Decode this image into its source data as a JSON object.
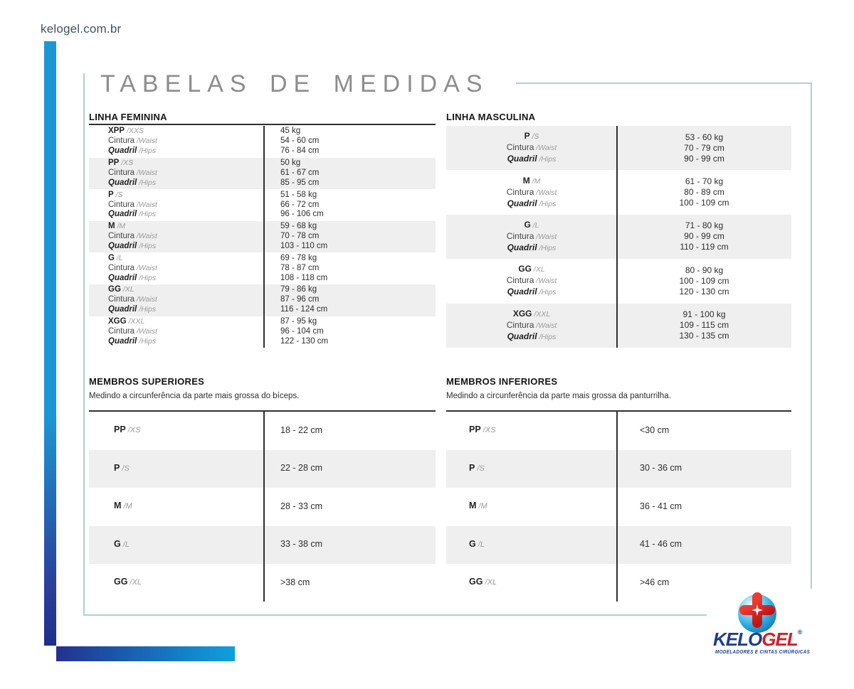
{
  "site_url": "kelogel.com.br",
  "page_title": "TABELAS DE MEDIDAS",
  "colors": {
    "accent_blue": "#1b97d5",
    "navy": "#1e2f8d",
    "frame_teal": "#aed0ce",
    "row_gray": "#efefef",
    "logo_navy": "#1c3e92",
    "logo_red": "#cf2027"
  },
  "labels": {
    "waist": "Cintura",
    "waist_alt": "/Waist",
    "hips": "Quadril",
    "hips_alt": "/Hips"
  },
  "tables": {
    "feminina": {
      "title": "LINHA FEMININA",
      "rows": [
        {
          "size": "XPP",
          "size_alt": "/XXS",
          "values": [
            "45 kg",
            "54 - 60 cm",
            "76 - 84 cm"
          ]
        },
        {
          "size": "PP",
          "size_alt": "/XS",
          "values": [
            "50 kg",
            "61 - 67 cm",
            "85 - 95 cm"
          ]
        },
        {
          "size": "P",
          "size_alt": "/S",
          "values": [
            "51 - 58 kg",
            "66 - 72 cm",
            "96 - 106 cm"
          ]
        },
        {
          "size": "M",
          "size_alt": "/M",
          "values": [
            "59 - 68 kg",
            "70 - 78 cm",
            "103 - 110 cm"
          ]
        },
        {
          "size": "G",
          "size_alt": "/L",
          "values": [
            "69 - 78 kg",
            "78 - 87 cm",
            "108 - 118 cm"
          ]
        },
        {
          "size": "GG",
          "size_alt": "/XL",
          "values": [
            "79 - 86 kg",
            "87 - 96 cm",
            "116 - 124 cm"
          ]
        },
        {
          "size": "XGG",
          "size_alt": "/XXL",
          "values": [
            "87 - 95 kg",
            "96 - 104 cm",
            "122 - 130 cm"
          ]
        }
      ]
    },
    "masculina": {
      "title": "LINHA MASCULINA",
      "rows": [
        {
          "size": "P",
          "size_alt": "/S",
          "values": [
            "53 - 60 kg",
            "70 - 79 cm",
            "90 - 99 cm"
          ]
        },
        {
          "size": "M",
          "size_alt": "/M",
          "values": [
            "61 - 70 kg",
            "80 - 89 cm",
            "100 - 109 cm"
          ]
        },
        {
          "size": "G",
          "size_alt": "/L",
          "values": [
            "71 - 80 kg",
            "90 - 99 cm",
            "110 - 119 cm"
          ]
        },
        {
          "size": "GG",
          "size_alt": "/XL",
          "values": [
            "80 - 90 kg",
            "100 - 109 cm",
            "120 - 130 cm"
          ]
        },
        {
          "size": "XGG",
          "size_alt": "/XXL",
          "values": [
            "91 - 100 kg",
            "109 - 115 cm",
            "130 - 135 cm"
          ]
        }
      ]
    },
    "superiores": {
      "title": "MEMBROS SUPERIORES",
      "subtitle": "Medindo a circunferência da parte mais grossa do bíceps.",
      "rows": [
        {
          "size": "PP",
          "size_alt": "/XS",
          "value": "18 - 22 cm"
        },
        {
          "size": "P",
          "size_alt": "/S",
          "value": "22 - 28 cm"
        },
        {
          "size": "M",
          "size_alt": "/M",
          "value": "28 - 33 cm"
        },
        {
          "size": "G",
          "size_alt": "/L",
          "value": "33 - 38 cm"
        },
        {
          "size": "GG",
          "size_alt": "/XL",
          "value": ">38 cm"
        }
      ]
    },
    "inferiores": {
      "title": "MEMBROS INFERIORES",
      "subtitle": "Medindo a circunferência da parte mais grossa da panturrilha.",
      "rows": [
        {
          "size": "PP",
          "size_alt": "/XS",
          "value": "<30 cm"
        },
        {
          "size": "P",
          "size_alt": "/S",
          "value": "30 - 36 cm"
        },
        {
          "size": "M",
          "size_alt": "/M",
          "value": "36 - 41 cm"
        },
        {
          "size": "G",
          "size_alt": "/L",
          "value": "41 - 46 cm"
        },
        {
          "size": "GG",
          "size_alt": "/XL",
          "value": ">46 cm"
        }
      ]
    }
  },
  "logo": {
    "brand_part1": "KELO",
    "brand_part2": "GEL",
    "registered": "®",
    "tagline": "MODELADORES E CINTAS CIRÚRGICAS"
  }
}
